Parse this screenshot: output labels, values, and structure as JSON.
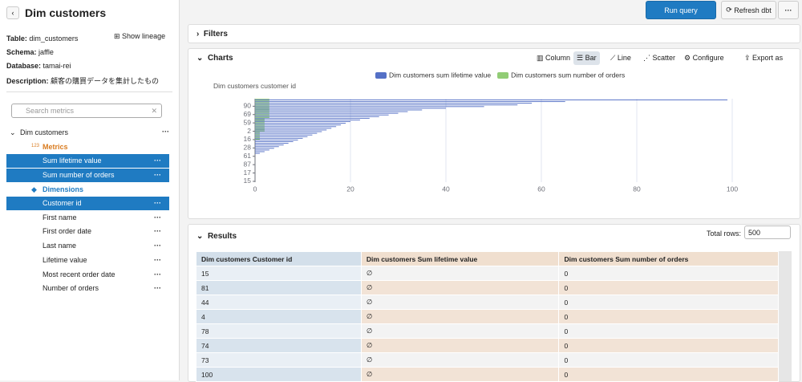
{
  "header": {
    "title": "Dim customers"
  },
  "sidebar": {
    "info": [
      {
        "label": "Table:",
        "value": "dim_customers"
      },
      {
        "label": "Schema:",
        "value": "jaffle"
      },
      {
        "label": "Database:",
        "value": "tamai-rei"
      },
      {
        "label": "Description:",
        "value": "顧客の購買データを集計したもの"
      }
    ],
    "show_lineage": "Show lineage",
    "search_placeholder": "Search metrics",
    "explore": "Dim customers",
    "metrics_icon": "123",
    "metrics_title": "Metrics",
    "metrics": [
      "Sum lifetime value",
      "Sum number of orders"
    ],
    "dimensions_title": "Dimensions",
    "dimensions": [
      "Customer id",
      "First name",
      "First order date",
      "Last name",
      "Lifetime value",
      "Most recent order date",
      "Number of orders"
    ]
  },
  "toolbar": {
    "run": "Run query",
    "refresh": "Refresh dbt"
  },
  "filters": {
    "title": "Filters"
  },
  "charts": {
    "title": "Charts",
    "buttons": [
      "Column",
      "Bar",
      "Line",
      "Scatter",
      "Configure",
      "Export as"
    ]
  },
  "chart_data": {
    "type": "bar",
    "orientation": "horizontal",
    "ylabel": "Dim customers customer id",
    "categories": [
      "15",
      null,
      null,
      null,
      null,
      "17",
      null,
      null,
      null,
      null,
      "87",
      null,
      null,
      null,
      null,
      "61",
      null,
      null,
      null,
      null,
      "28",
      null,
      null,
      null,
      null,
      "16",
      null,
      null,
      null,
      null,
      "2",
      null,
      null,
      null,
      null,
      "59",
      null,
      null,
      null,
      null,
      "69",
      null,
      null,
      null,
      null,
      "90",
      null,
      null,
      null,
      null
    ],
    "series": [
      {
        "name": "Dim customers sum lifetime value",
        "color": "#5470c6",
        "values": [
          null,
          null,
          null,
          null,
          null,
          null,
          null,
          null,
          null,
          null,
          null,
          null,
          null,
          null,
          null,
          null,
          null,
          1,
          2,
          3,
          4,
          5,
          6,
          7,
          8,
          9,
          10,
          11,
          12,
          13,
          14,
          15,
          16,
          17,
          18,
          19,
          20,
          22,
          24,
          26,
          28,
          30,
          32,
          35,
          40,
          48,
          55,
          58,
          65,
          99
        ]
      },
      {
        "name": "Dim customers sum number of orders",
        "color": "#91cc75",
        "values": [
          0,
          0,
          0,
          0,
          0,
          0,
          0,
          0,
          0,
          0,
          0,
          0,
          0,
          0,
          0,
          0,
          0,
          0,
          0,
          0,
          0,
          0,
          0,
          0,
          0,
          1,
          1,
          1,
          1,
          1,
          2,
          2,
          2,
          2,
          2,
          2,
          2,
          2,
          3,
          3,
          3,
          3,
          3,
          3,
          3,
          3,
          3,
          3,
          3,
          3
        ]
      }
    ],
    "xlim": [
      0,
      100
    ],
    "xticks": [
      0,
      20,
      40,
      60,
      80,
      100
    ],
    "grid": true
  },
  "results": {
    "title": "Results",
    "total_rows_label": "Total rows:",
    "total_rows": "500",
    "table": {
      "header": [
        "Dim customers Customer id",
        "Dim customers Sum lifetime value",
        "Dim customers Sum number of orders"
      ],
      "rows": [
        [
          "15",
          "∅",
          0
        ],
        [
          "81",
          "∅",
          0
        ],
        [
          "44",
          "∅",
          0
        ],
        [
          "4",
          "∅",
          0
        ],
        [
          "78",
          "∅",
          0
        ],
        [
          "74",
          "∅",
          0
        ],
        [
          "73",
          "∅",
          0
        ],
        [
          "100",
          "∅",
          0
        ]
      ]
    }
  }
}
